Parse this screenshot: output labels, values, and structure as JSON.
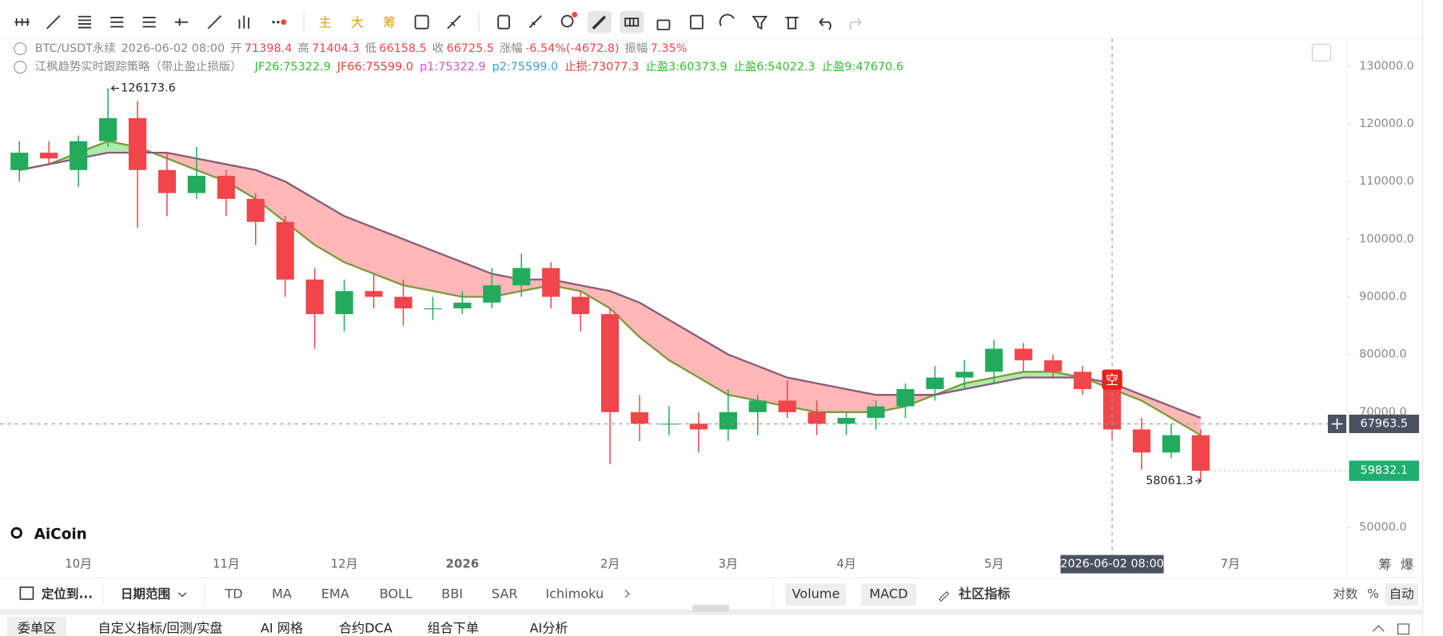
{
  "toolbar": {
    "buttons": [
      "主",
      "大",
      "筹"
    ]
  },
  "legend": {
    "symbol": "BTC/USDT永续",
    "time": "2026-06-02 08:00",
    "fields": [
      {
        "label": "开",
        "value": "71398.4"
      },
      {
        "label": "高",
        "value": "71404.3"
      },
      {
        "label": "低",
        "value": "66158.5"
      },
      {
        "label": "收",
        "value": "66725.5"
      },
      {
        "label": "涨幅",
        "value": "-6.54%(-4672.8)"
      },
      {
        "label": "振幅",
        "value": "7.35%"
      }
    ]
  },
  "indicator": {
    "name": "江枫趋势实时跟踪策略（带止盈止损版）",
    "values": [
      {
        "text": "JF26:75322.9",
        "color": "#2ec02e"
      },
      {
        "text": "JF66:75599.0",
        "color": "#f03c3c"
      },
      {
        "text": "p1:75322.9",
        "color": "#d94fd9"
      },
      {
        "text": "p2:75599.0",
        "color": "#3aa0d8"
      },
      {
        "text": "止损:73077.3",
        "color": "#f03c3c"
      },
      {
        "text": "止盈3:60373.9",
        "color": "#2ec02e"
      },
      {
        "text": "止盈6:54022.3",
        "color": "#2ec02e"
      },
      {
        "text": "止盈9:47670.6",
        "color": "#2ec02e"
      }
    ]
  },
  "chart_data": {
    "type": "candlestick",
    "categories": [
      null,
      null,
      "10月",
      null,
      null,
      null,
      null,
      "11月",
      null,
      null,
      null,
      "12月",
      null,
      null,
      null,
      "2026",
      null,
      null,
      null,
      null,
      "2月",
      null,
      null,
      null,
      "3月",
      null,
      null,
      null,
      "4月",
      null,
      null,
      null,
      null,
      "5月",
      null,
      null,
      null,
      null,
      null,
      null,
      null,
      "7月"
    ],
    "open": [
      112000,
      115000,
      112000,
      117000,
      121000,
      112000,
      108000,
      111000,
      107000,
      103000,
      93000,
      87000,
      91000,
      90000,
      88000,
      88000,
      89000,
      92000,
      95000,
      90000,
      87000,
      70000,
      68000,
      68000,
      67000,
      70000,
      72000,
      70000,
      68000,
      69000,
      71000,
      74000,
      76000,
      77000,
      81000,
      79000,
      77000,
      74000,
      67000,
      63000,
      66000,
      null
    ],
    "high": [
      117000,
      117000,
      118000,
      126173.6,
      124000,
      115000,
      116000,
      112000,
      108000,
      104000,
      95000,
      93000,
      94000,
      93000,
      90000,
      91000,
      95000,
      97500,
      96000,
      91000,
      88000,
      73000,
      71000,
      70000,
      74000,
      73000,
      75500,
      72000,
      70000,
      72000,
      75000,
      78000,
      79000,
      82500,
      82000,
      80000,
      78000,
      75000,
      69000,
      68000,
      67000,
      null
    ],
    "low": [
      110000,
      113000,
      109000,
      116000,
      102000,
      104000,
      107000,
      104000,
      99000,
      90000,
      81000,
      84000,
      88000,
      85000,
      86000,
      87000,
      88000,
      90000,
      88000,
      84000,
      61000,
      65000,
      66000,
      63000,
      65000,
      66000,
      69000,
      66000,
      66000,
      67000,
      69000,
      72000,
      74000,
      75000,
      77000,
      76000,
      73000,
      65000,
      60000,
      62000,
      58061.3,
      null
    ],
    "close": [
      115000,
      114000,
      117000,
      121000,
      112000,
      108000,
      111000,
      107000,
      103000,
      93000,
      87000,
      91000,
      90000,
      88000,
      88000,
      89000,
      92000,
      95000,
      90000,
      87000,
      70000,
      68000,
      68000,
      67000,
      70000,
      72000,
      70000,
      68000,
      69000,
      71000,
      74000,
      76000,
      77000,
      81000,
      79000,
      77000,
      74000,
      67000,
      63000,
      66000,
      59832.1,
      null
    ],
    "up_color": "#22ab5c",
    "down_color": "#f0464b",
    "lines": [
      {
        "color": "#7a9a3a",
        "values": [
          112000,
          113000,
          115000,
          117000,
          116000,
          114000,
          112000,
          110000,
          107000,
          103000,
          99000,
          96000,
          94000,
          92000,
          91000,
          90000,
          90000,
          91000,
          92000,
          91000,
          88000,
          83000,
          79000,
          76000,
          73000,
          72000,
          71000,
          70000,
          70000,
          70000,
          71000,
          73000,
          75000,
          76000,
          77000,
          77000,
          76000,
          74000,
          72000,
          69000,
          66000,
          null
        ]
      },
      {
        "color": "#8a5a78",
        "values": [
          112000,
          113000,
          114000,
          115000,
          115000,
          115000,
          114000,
          113000,
          112000,
          110000,
          107000,
          104000,
          102000,
          100000,
          98000,
          96000,
          94000,
          93000,
          93000,
          92000,
          91000,
          89000,
          86000,
          83000,
          80000,
          78000,
          76000,
          75000,
          74000,
          73000,
          73000,
          73000,
          74000,
          75000,
          76000,
          76000,
          76000,
          75000,
          73000,
          71000,
          69000,
          null
        ]
      }
    ],
    "band_up_color": "#9ee89a",
    "band_down_color": "#ffaaaa",
    "ylim": [
      45700,
      135100
    ],
    "yticks": [
      {
        "value": 50000,
        "label": "50000.0"
      },
      {
        "value": 70000,
        "label": "70000.0"
      },
      {
        "value": 80000,
        "label": "80000.0"
      },
      {
        "value": 90000,
        "label": "90000.0"
      },
      {
        "value": 100000,
        "label": "100000.0"
      },
      {
        "value": 110000,
        "label": "110000.0"
      },
      {
        "value": 120000,
        "label": "120000.0"
      },
      {
        "value": 130000,
        "label": "130000.0"
      }
    ],
    "high_label": "126173.6",
    "low_label": "58061.3",
    "signal": {
      "text": "空",
      "index": 37
    },
    "crosshair_label": "2026-06-02 08:00",
    "crosshair_price": 67963.5,
    "last_price": 59832.1,
    "last_price_color": "#1fae6f"
  },
  "bottom_bar": {
    "locate": "定位到...",
    "date_range": "日期范围",
    "indicators": [
      "TD",
      "MA",
      "EMA",
      "BOLL",
      "BBI",
      "SAR",
      "Ichimoku"
    ],
    "sub_indicators": [
      "Volume",
      "MACD"
    ],
    "community": "社区指标",
    "scale": [
      "对数",
      "%",
      "自动"
    ]
  },
  "right_labels": [
    "筹",
    "爆"
  ],
  "logo": "AiCoin",
  "tabs": [
    "委单区",
    "自定义指标/回测/实盘",
    "AI 网格",
    "合约DCA",
    "组合下单",
    "AI分析"
  ]
}
